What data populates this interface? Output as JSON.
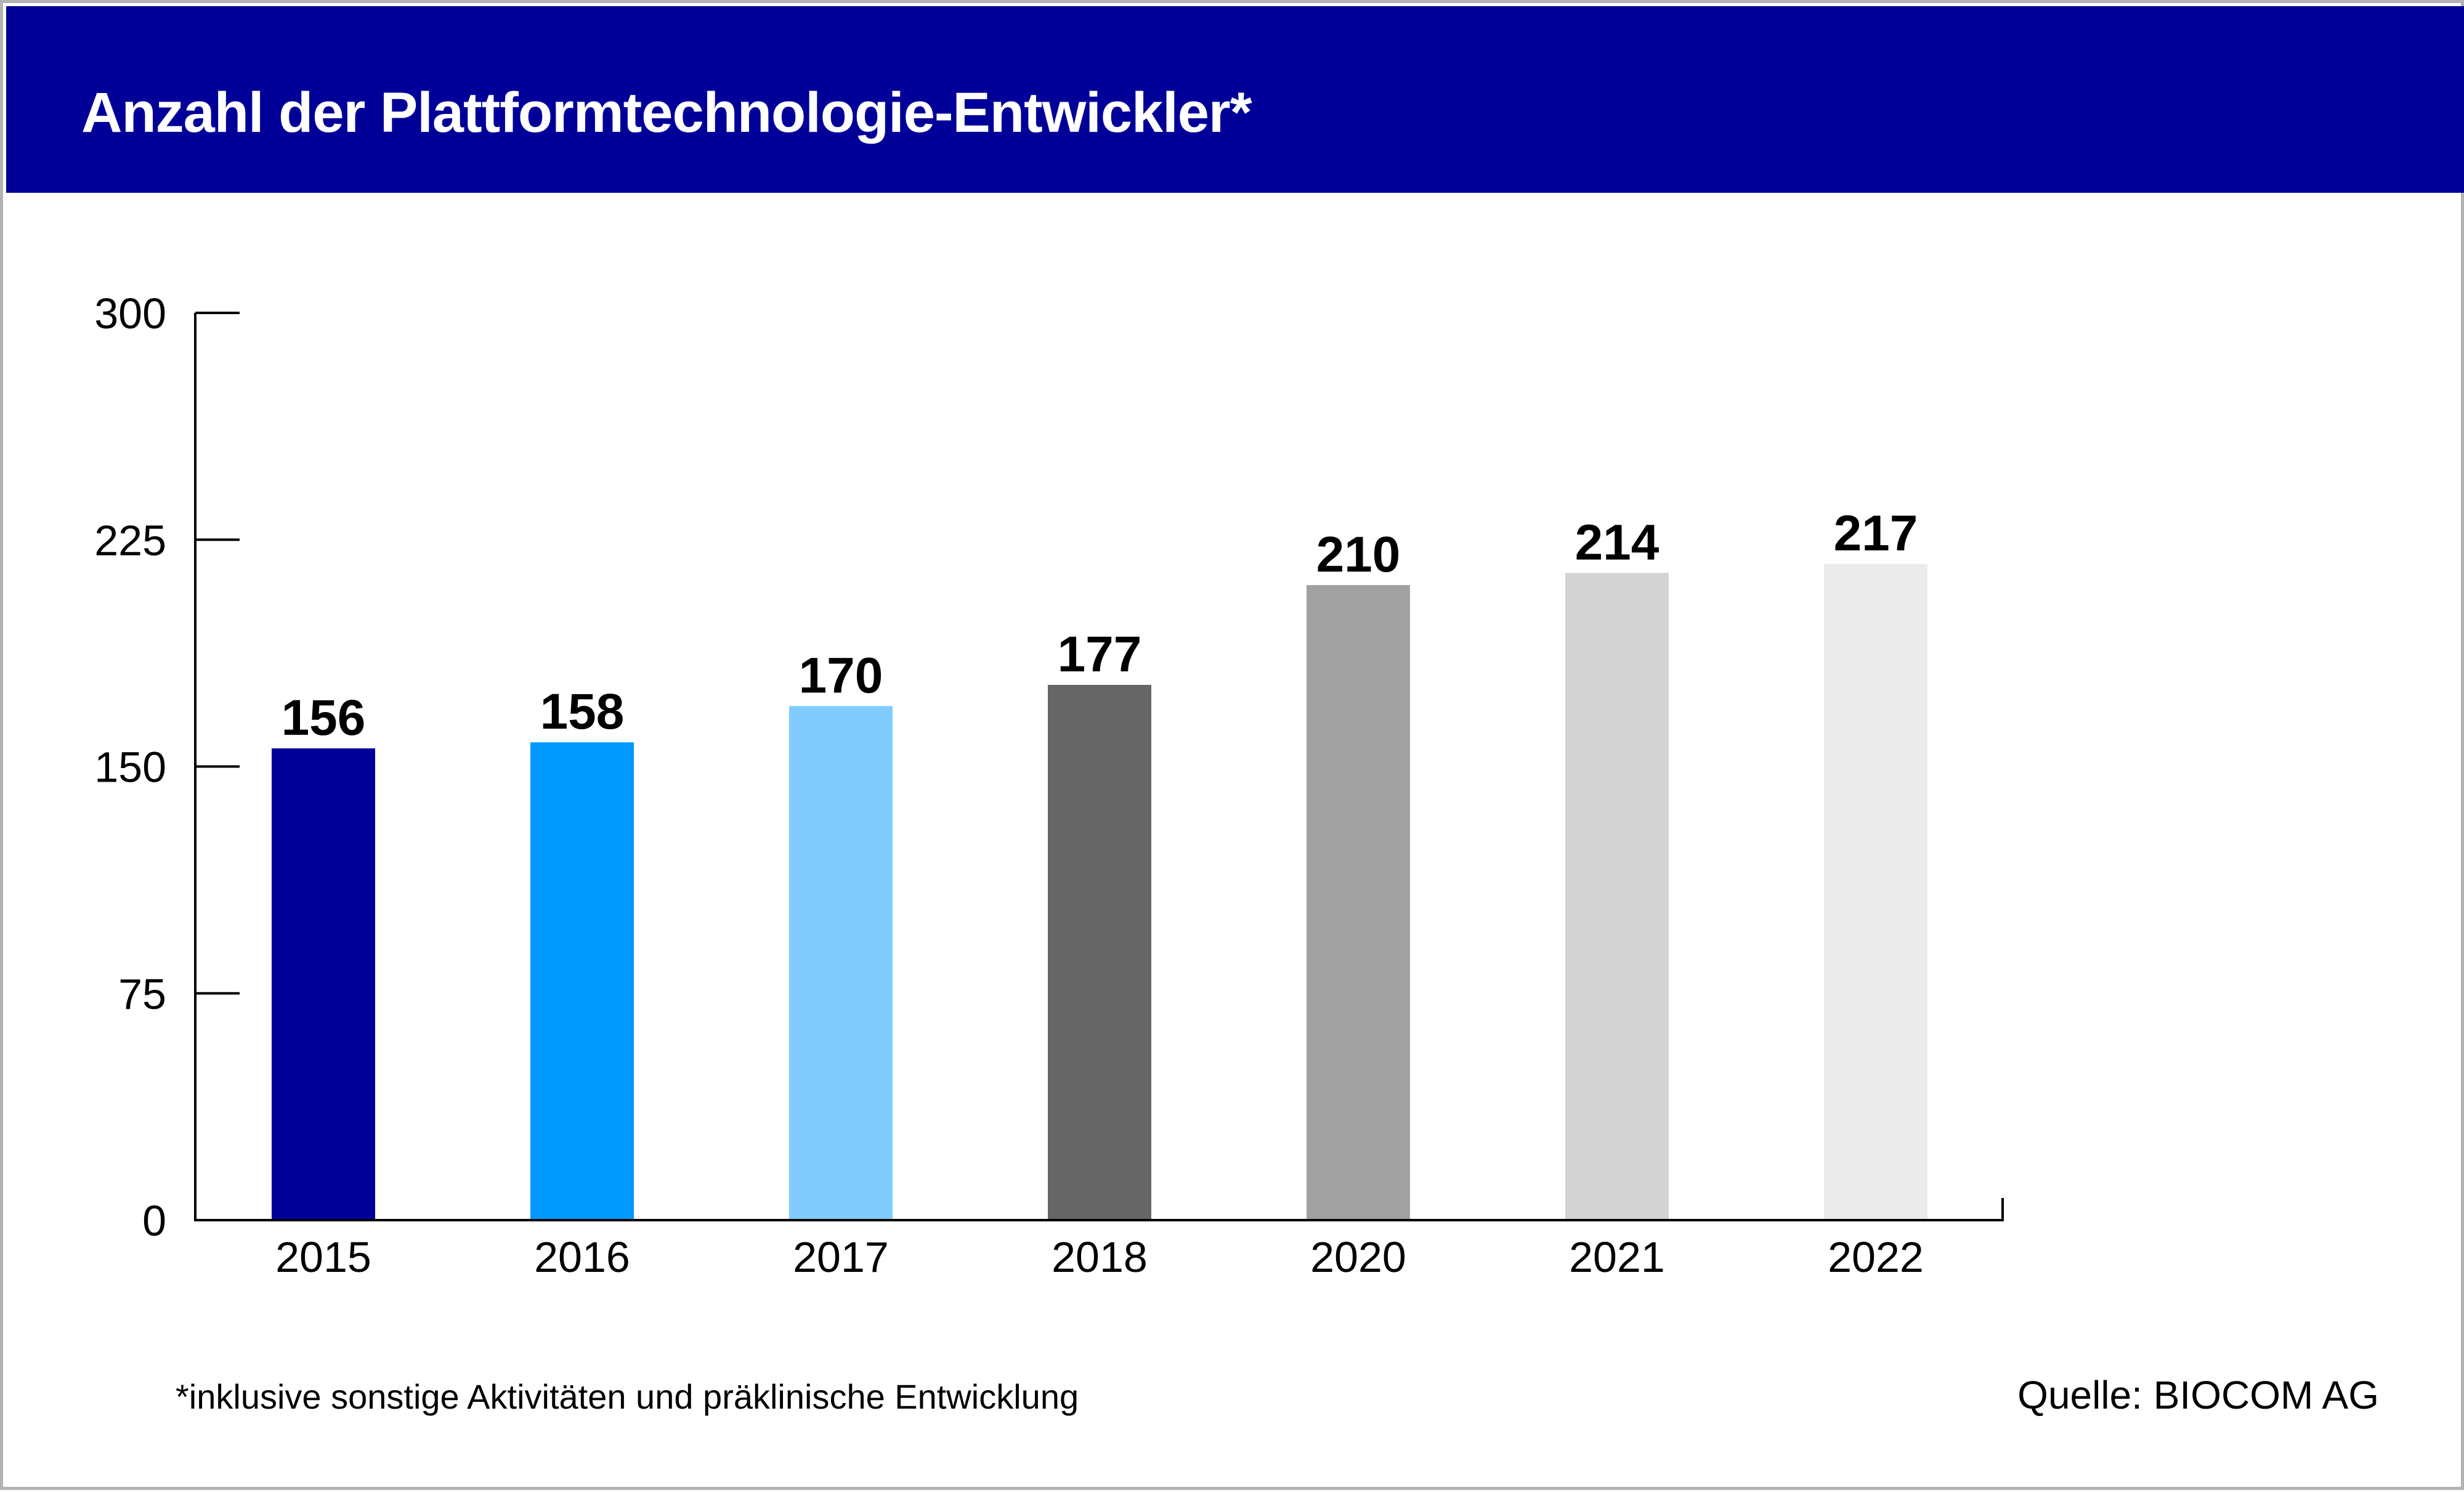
{
  "chart_data": {
    "type": "bar",
    "title": "Anzahl der Plattformtechnologie-Entwickler*",
    "xlabel": "",
    "ylabel": "",
    "categories": [
      "2015",
      "2016",
      "2017",
      "2018",
      "2020",
      "2021",
      "2022"
    ],
    "values": [
      156,
      158,
      170,
      177,
      210,
      214,
      217
    ],
    "bar_colors": [
      "#000099",
      "#0099ff",
      "#80ccff",
      "#666666",
      "#a1a1a1",
      "#d3d3d3",
      "#ebebeb"
    ],
    "ylim": [
      0,
      300
    ],
    "yticks": [
      0,
      75,
      150,
      225,
      300
    ],
    "grid": false,
    "data_labels": true,
    "footnote": "*inklusive sonstige Aktivitäten und präklinische Entwicklung",
    "source": "Quelle: BIOCOM AG"
  },
  "colors": {
    "header_background": "#000099",
    "header_text": "#ffffff",
    "frame_border": "#b3b3b3"
  }
}
